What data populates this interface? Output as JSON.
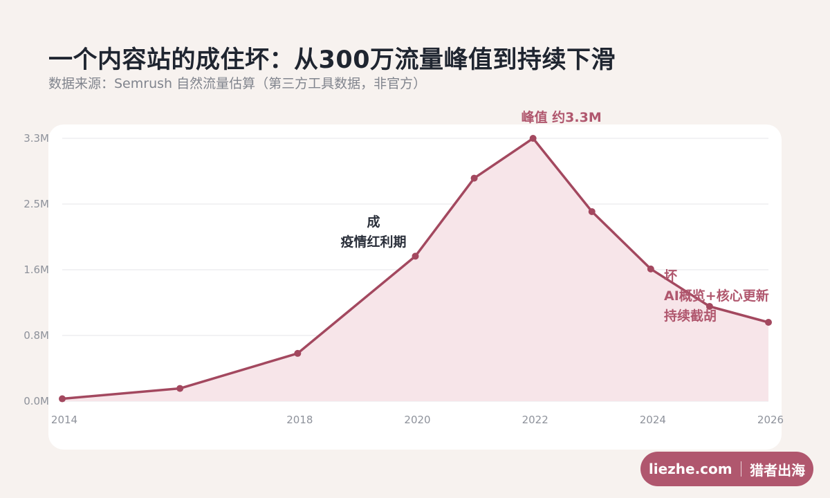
{
  "header": {
    "title": "一个内容站的成住坏：从300万流量峰值到持续下滑",
    "subtitle": "数据来源：Semrush 自然流量估算（第三方工具数据，非官方）"
  },
  "branding": {
    "site": "liezhe.com",
    "name": "猎者出海",
    "badge_color": "#b0576e"
  },
  "colors": {
    "line": "#a3485f",
    "area_fill": "#f7e5e9",
    "annotation_accent": "#b0576e",
    "annotation_dark": "#2a2f3a",
    "tick_text": "#8e929b",
    "grid": "#e6e6e8"
  },
  "chart_data": {
    "type": "area",
    "title": "",
    "xlabel": "",
    "ylabel": "",
    "xlim": [
      2014,
      2026
    ],
    "ylim": [
      0,
      3.3
    ],
    "grid": true,
    "x_ticks": [
      2014,
      2018,
      2020,
      2022,
      2024,
      2026
    ],
    "x_tick_labels": [
      "2014",
      "2018",
      "2020",
      "2022",
      "2024",
      "2026"
    ],
    "y_ticks": [
      0,
      0.825,
      1.65,
      2.475,
      3.3
    ],
    "y_tick_labels": [
      "0.0M",
      "0.8M",
      "1.6M",
      "2.5M",
      "3.3M"
    ],
    "series": [
      {
        "values_unit": "M",
        "x": [
          2014,
          2016,
          2018,
          2020,
          2021,
          2022,
          2023,
          2024,
          2025,
          2026
        ],
        "values": [
          0.03,
          0.16,
          0.6,
          1.82,
          2.8,
          3.3,
          2.38,
          1.66,
          1.19,
          0.99
        ]
      }
    ],
    "annotations": [
      {
        "lines": [
          "峰值 约3.3M"
        ],
        "x": 2022,
        "y": 3.3,
        "style": "accent"
      },
      {
        "lines": [
          "成",
          "疫情红利期"
        ],
        "x": 2019.3,
        "y": 2.28,
        "style": "dark"
      },
      {
        "lines": [
          "坏",
          "AI概览+核心更新",
          "持续截胡"
        ],
        "x": 2024.25,
        "y": 1.41,
        "style": "accent"
      }
    ]
  }
}
